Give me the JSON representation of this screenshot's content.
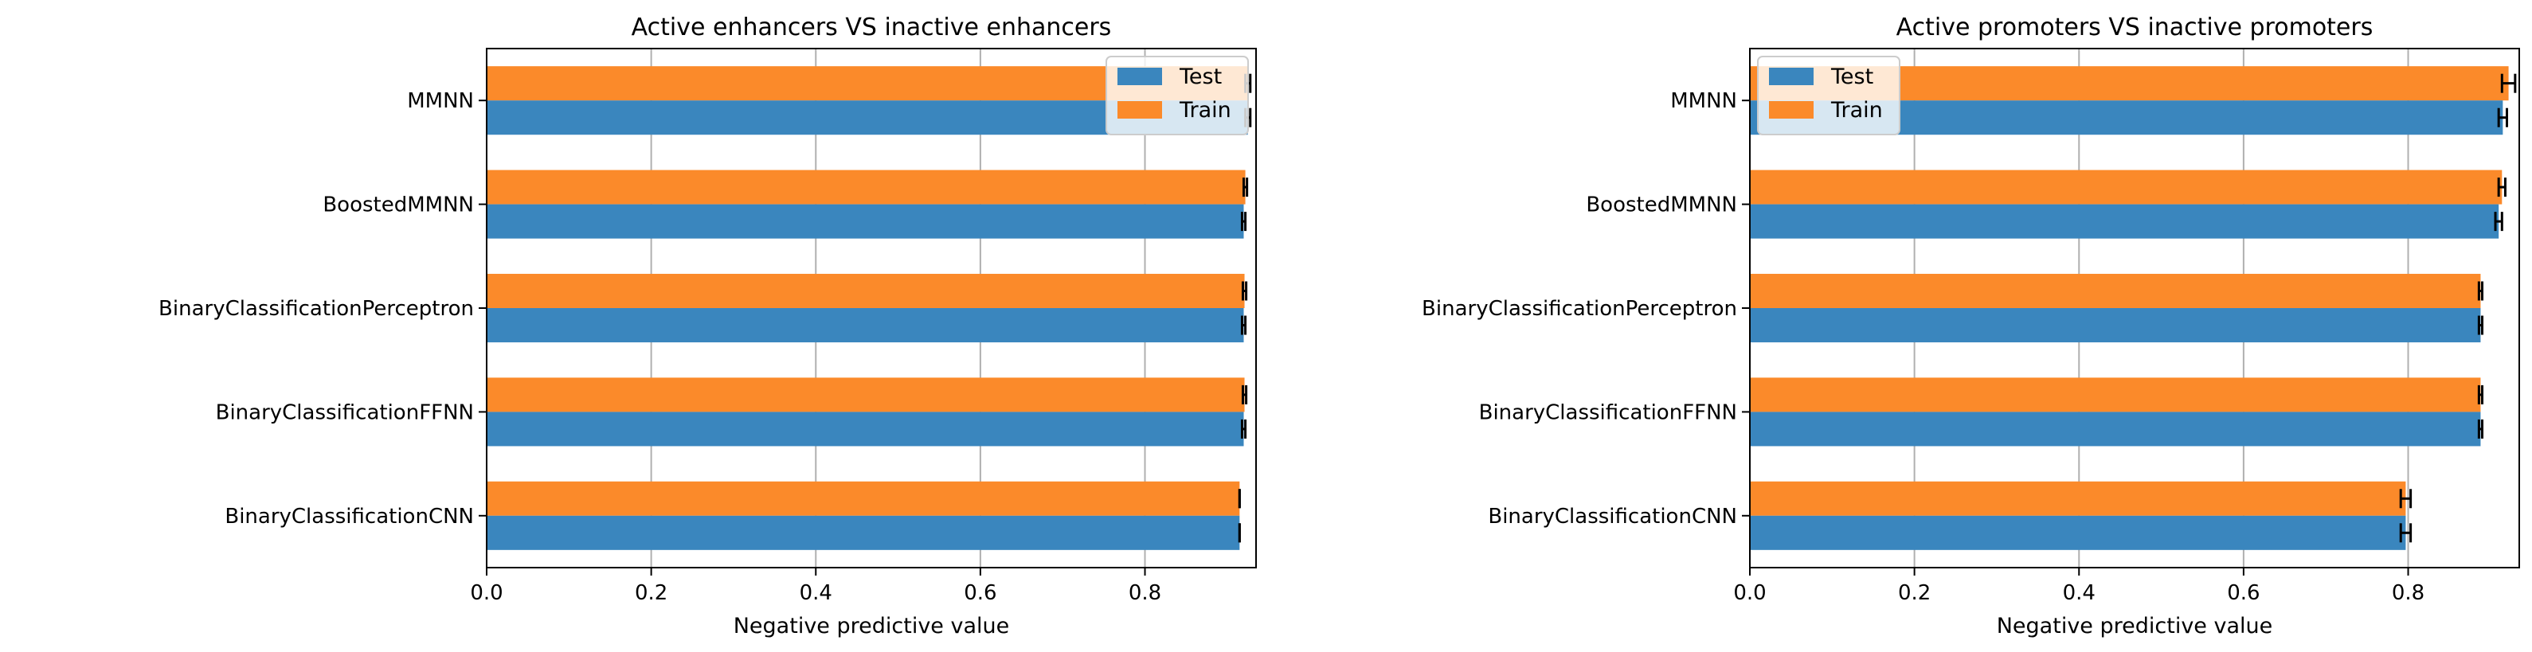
{
  "colors": {
    "test": "#3a86be",
    "train": "#fb8a2a",
    "grid": "#b0b0b0",
    "errorbar": "#000000"
  },
  "legend_labels": {
    "test": "Test",
    "train": "Train"
  },
  "chart_data": [
    {
      "type": "bar",
      "orientation": "horizontal",
      "title": "Active enhancers VS inactive enhancers",
      "xlabel": "Negative predictive value",
      "ylabel": "",
      "categories": [
        "MMNN",
        "BoostedMMNN",
        "BinaryClassificationPerceptron",
        "BinaryClassificationFFNN",
        "BinaryClassificationCNN"
      ],
      "series": [
        {
          "name": "Test",
          "values": [
            0.925,
            0.92,
            0.92,
            0.92,
            0.915
          ],
          "errors": [
            0.003,
            0.002,
            0.002,
            0.002,
            0.0
          ]
        },
        {
          "name": "Train",
          "values": [
            0.925,
            0.922,
            0.921,
            0.921,
            0.915
          ],
          "errors": [
            0.003,
            0.002,
            0.002,
            0.002,
            0.0
          ]
        }
      ],
      "xlim": [
        0,
        0.935
      ],
      "xticks": [
        0.0,
        0.2,
        0.4,
        0.6,
        0.8
      ],
      "xtick_labels": [
        "0.0",
        "0.2",
        "0.4",
        "0.6",
        "0.8"
      ],
      "grid": "x",
      "legend": "top-right"
    },
    {
      "type": "bar",
      "orientation": "horizontal",
      "title": "Active promoters VS inactive promoters",
      "xlabel": "Negative predictive value",
      "ylabel": "",
      "categories": [
        "MMNN",
        "BoostedMMNN",
        "BinaryClassificationPerceptron",
        "BinaryClassificationFFNN",
        "BinaryClassificationCNN"
      ],
      "series": [
        {
          "name": "Test",
          "values": [
            0.915,
            0.91,
            0.888,
            0.888,
            0.797
          ],
          "errors": [
            0.005,
            0.004,
            0.002,
            0.002,
            0.006
          ]
        },
        {
          "name": "Train",
          "values": [
            0.922,
            0.914,
            0.888,
            0.888,
            0.797
          ],
          "errors": [
            0.008,
            0.004,
            0.002,
            0.002,
            0.006
          ]
        }
      ],
      "xlim": [
        0,
        0.935
      ],
      "xticks": [
        0.0,
        0.2,
        0.4,
        0.6,
        0.8
      ],
      "xtick_labels": [
        "0.0",
        "0.2",
        "0.4",
        "0.6",
        "0.8"
      ],
      "grid": "x",
      "legend": "top-left"
    }
  ]
}
